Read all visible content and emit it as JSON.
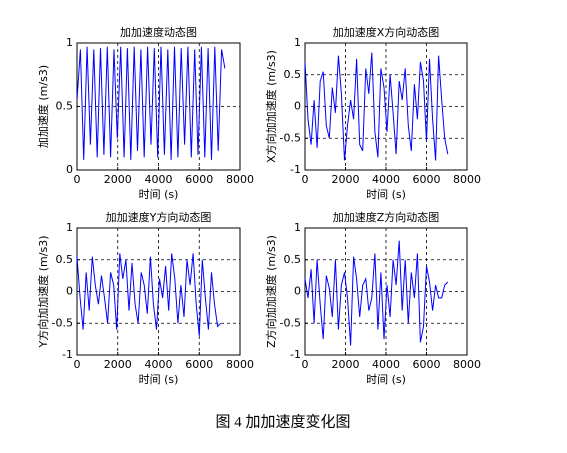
{
  "caption": "图 4  加加速度变化图",
  "chart_data": [
    {
      "type": "line",
      "title": "加加速度动态图",
      "xlabel": "时间 (s)",
      "ylabel": "加加速度 (m/s3)",
      "x": [
        0,
        165,
        330,
        495,
        660,
        825,
        990,
        1155,
        1320,
        1485,
        1650,
        1815,
        1980,
        2145,
        2310,
        2475,
        2640,
        2805,
        2970,
        3135,
        3300,
        3465,
        3630,
        3795,
        3960,
        4125,
        4290,
        4455,
        4620,
        4785,
        4950,
        5115,
        5280,
        5445,
        5610,
        5775,
        5940,
        6105,
        6270,
        6435,
        6600,
        6765,
        6930,
        7095,
        7260
      ],
      "series": [
        {
          "color": "#0000ff",
          "values": [
            0.55,
            0.95,
            0.08,
            0.97,
            0.2,
            0.95,
            0.1,
            0.96,
            0.12,
            0.97,
            0.1,
            0.95,
            0.25,
            0.97,
            0.1,
            0.96,
            0.08,
            0.97,
            0.15,
            0.95,
            0.1,
            0.97,
            0.2,
            0.96,
            0.1,
            0.97,
            0.12,
            0.95,
            0.08,
            0.97,
            0.1,
            0.96,
            0.2,
            0.97,
            0.1,
            0.95,
            0.12,
            0.97,
            0.1,
            0.96,
            0.08,
            0.97,
            0.15,
            0.95,
            0.8
          ]
        }
      ],
      "xlim": [
        0,
        8000
      ],
      "xticks": [
        0,
        2000,
        4000,
        6000,
        8000
      ],
      "ylim": [
        0,
        1
      ],
      "yticks": [
        0,
        0.5,
        1
      ],
      "grid": true
    },
    {
      "type": "line",
      "title": "加加速度X方向动态图",
      "xlabel": "时间 (s)",
      "ylabel": "X方向加加速度 (m/s3)",
      "x": [
        0,
        150,
        300,
        450,
        600,
        750,
        900,
        1050,
        1200,
        1350,
        1500,
        1650,
        1800,
        1950,
        2100,
        2250,
        2400,
        2550,
        2700,
        2850,
        3000,
        3150,
        3300,
        3450,
        3600,
        3750,
        3900,
        4050,
        4200,
        4350,
        4500,
        4650,
        4800,
        4950,
        5100,
        5250,
        5400,
        5550,
        5700,
        5850,
        6000,
        6150,
        6300,
        6450,
        6600,
        6750,
        6900,
        7050
      ],
      "series": [
        {
          "color": "#0000ff",
          "values": [
            0.7,
            -0.2,
            -0.6,
            0.1,
            -0.65,
            0.4,
            0.55,
            -0.3,
            -0.5,
            0.3,
            -0.1,
            0.8,
            0.2,
            -0.85,
            -0.3,
            0.1,
            -0.2,
            0.75,
            -0.6,
            -0.7,
            0.6,
            0.2,
            0.85,
            -0.4,
            -0.8,
            0.6,
            0.3,
            -0.4,
            0.5,
            -0.1,
            -0.75,
            0.4,
            0.1,
            0.6,
            -0.3,
            -0.7,
            0.35,
            -0.2,
            0.7,
            0.4,
            -0.55,
            0.75,
            -0.2,
            -0.85,
            0.8,
            0.1,
            -0.5,
            -0.75
          ]
        }
      ],
      "xlim": [
        0,
        8000
      ],
      "xticks": [
        0,
        2000,
        4000,
        6000,
        8000
      ],
      "ylim": [
        -1,
        1
      ],
      "yticks": [
        -1,
        -0.5,
        0,
        0.5,
        1
      ],
      "grid": true
    },
    {
      "type": "line",
      "title": "加加速度Y方向动态图",
      "xlabel": "时间 (s)",
      "ylabel": "Y方向加加速度 (m/s3)",
      "x": [
        0,
        150,
        300,
        450,
        600,
        750,
        900,
        1050,
        1200,
        1350,
        1500,
        1650,
        1800,
        1950,
        2100,
        2250,
        2400,
        2550,
        2700,
        2850,
        3000,
        3150,
        3300,
        3450,
        3600,
        3750,
        3900,
        4050,
        4200,
        4350,
        4500,
        4650,
        4800,
        4950,
        5100,
        5250,
        5400,
        5550,
        5700,
        5850,
        6000,
        6150,
        6300,
        6450,
        6600,
        6750,
        6900,
        7050
      ],
      "series": [
        {
          "color": "#0000ff",
          "values": [
            0.55,
            -0.1,
            -0.6,
            0.3,
            -0.3,
            0.55,
            0.1,
            -0.2,
            0.25,
            -0.1,
            -0.5,
            0.3,
            0.1,
            -0.6,
            0.6,
            0.2,
            0.5,
            -0.3,
            0.45,
            -0.2,
            -0.5,
            0.3,
            0.1,
            -0.35,
            0.55,
            -0.2,
            -0.6,
            0.2,
            -0.1,
            0.4,
            -0.3,
            0.6,
            0.2,
            -0.5,
            0.1,
            -0.4,
            0.5,
            0.1,
            0.6,
            -0.2,
            -0.7,
            0.5,
            -0.1,
            -0.6,
            0.3,
            -0.2,
            -0.55,
            -0.5
          ]
        }
      ],
      "xlim": [
        0,
        8000
      ],
      "xticks": [
        0,
        2000,
        4000,
        6000,
        8000
      ],
      "ylim": [
        -1,
        1
      ],
      "yticks": [
        -1,
        -0.5,
        0,
        0.5,
        1
      ],
      "grid": true
    },
    {
      "type": "line",
      "title": "加加速度Z方向动态图",
      "xlabel": "时间 (s)",
      "ylabel": "Z方向加加速度 (m/s3)",
      "x": [
        0,
        150,
        300,
        450,
        600,
        750,
        900,
        1050,
        1200,
        1350,
        1500,
        1650,
        1800,
        1950,
        2100,
        2250,
        2400,
        2550,
        2700,
        2850,
        3000,
        3150,
        3300,
        3450,
        3600,
        3750,
        3900,
        4050,
        4200,
        4350,
        4500,
        4650,
        4800,
        4950,
        5100,
        5250,
        5400,
        5550,
        5700,
        5850,
        6000,
        6150,
        6300,
        6450,
        6600,
        6750,
        6900,
        7050
      ],
      "series": [
        {
          "color": "#0000ff",
          "values": [
            0.2,
            -0.1,
            0.35,
            -0.5,
            0.5,
            -0.2,
            -0.75,
            0.25,
            0.05,
            -0.4,
            0.5,
            -0.6,
            0.1,
            0.3,
            -0.1,
            -0.85,
            0.55,
            0.2,
            -0.4,
            0.1,
            0.2,
            -0.3,
            -0.1,
            0.6,
            -0.6,
            0.3,
            -0.75,
            0.1,
            -0.4,
            0.5,
            0.1,
            0.8,
            -0.3,
            0.5,
            -0.5,
            0.3,
            -0.1,
            0.6,
            -0.8,
            -0.55,
            0.4,
            0.15,
            -0.3,
            0.1,
            -0.1,
            -0.1,
            0.1,
            0.15
          ]
        }
      ],
      "xlim": [
        0,
        8000
      ],
      "xticks": [
        0,
        2000,
        4000,
        6000,
        8000
      ],
      "ylim": [
        -1,
        1
      ],
      "yticks": [
        -1,
        -0.5,
        0,
        0.5,
        1
      ],
      "grid": true
    }
  ]
}
